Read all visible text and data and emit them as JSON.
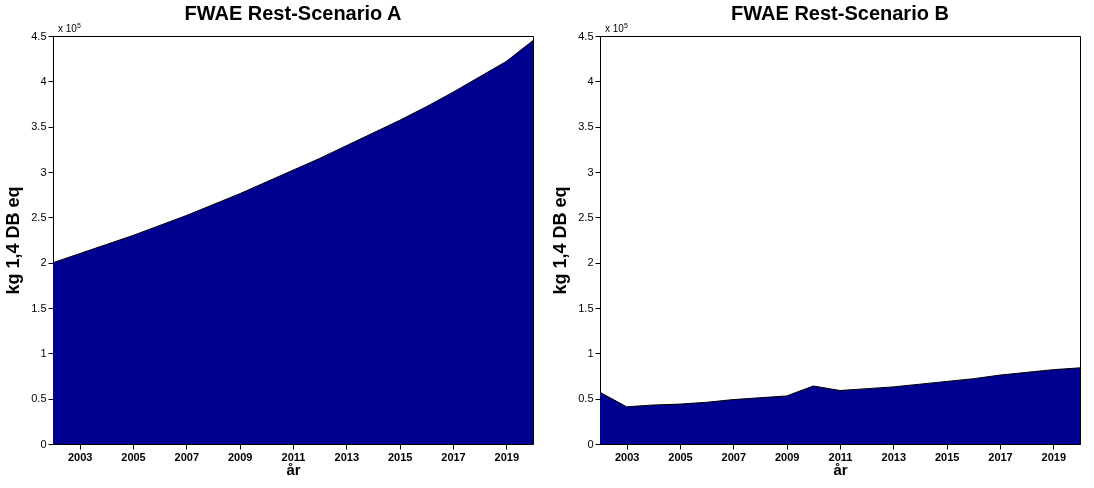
{
  "chart_data": [
    {
      "type": "area",
      "title": "FWAE Rest-Scenario A",
      "xlabel": "år",
      "ylabel": "kg 1,4 DB eq",
      "annotations": [
        "x 10$^{5}$"
      ],
      "x": [
        2002,
        2003,
        2004,
        2005,
        2006,
        2007,
        2008,
        2009,
        2010,
        2011,
        2012,
        2013,
        2014,
        2015,
        2016,
        2017,
        2018,
        2019,
        2020
      ],
      "series": [
        {
          "color": "#000090",
          "values": [
            2.0,
            2.1,
            2.2,
            2.3,
            2.41,
            2.52,
            2.64,
            2.76,
            2.89,
            3.02,
            3.15,
            3.29,
            3.43,
            3.57,
            3.72,
            3.88,
            4.05,
            4.22,
            4.45
          ]
        }
      ],
      "xlim": [
        2002,
        2020
      ],
      "xticks": [
        2003,
        2005,
        2007,
        2009,
        2011,
        2013,
        2015,
        2017,
        2019
      ],
      "ylim": [
        0,
        4.5
      ],
      "yticks": [
        0,
        0.5,
        1,
        1.5,
        2,
        2.5,
        3,
        3.5,
        4,
        4.5
      ],
      "grid": false
    },
    {
      "type": "area",
      "title": "FWAE Rest-Scenario B",
      "xlabel": "år",
      "ylabel": "kg 1,4 DB eq",
      "annotations": [
        "x 10$^{5}$"
      ],
      "x": [
        2002,
        2003,
        2004,
        2005,
        2006,
        2007,
        2008,
        2009,
        2010,
        2011,
        2012,
        2013,
        2014,
        2015,
        2016,
        2017,
        2018,
        2019,
        2020
      ],
      "series": [
        {
          "color": "#000090",
          "values": [
            0.57,
            0.41,
            0.43,
            0.44,
            0.46,
            0.49,
            0.51,
            0.53,
            0.64,
            0.59,
            0.61,
            0.63,
            0.66,
            0.69,
            0.72,
            0.76,
            0.79,
            0.82,
            0.84
          ]
        }
      ],
      "xlim": [
        2002,
        2020
      ],
      "xticks": [
        2003,
        2005,
        2007,
        2009,
        2011,
        2013,
        2015,
        2017,
        2019
      ],
      "ylim": [
        0,
        4.5
      ],
      "yticks": [
        0,
        0.5,
        1,
        1.5,
        2,
        2.5,
        3,
        3.5,
        4,
        4.5
      ],
      "grid": false
    }
  ]
}
